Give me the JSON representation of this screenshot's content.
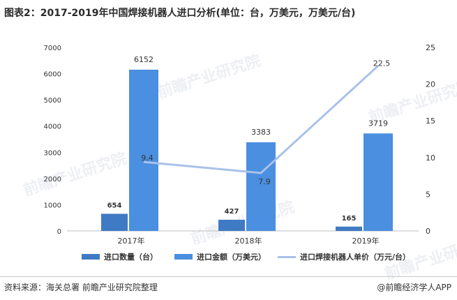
{
  "title": "图表2：2017-2019年中国焊接机器人进口分析(单位：台，万美元，万美元/台)",
  "colors": {
    "qty_bar": "#3f7bc4",
    "amount_bar": "#4a8fe0",
    "price_line": "#a9c1ea",
    "axis_text": "#333333",
    "gridline": "#e2e2e2"
  },
  "chart_data": {
    "type": "bar",
    "categories": [
      "2017年",
      "2018年",
      "2019年"
    ],
    "series": [
      {
        "name": "进口数量（台）",
        "type": "bar",
        "axis": "left",
        "values": [
          654,
          427,
          165
        ]
      },
      {
        "name": "进口金额（万美元）",
        "type": "bar",
        "axis": "left",
        "values": [
          6152,
          3383,
          3719
        ]
      },
      {
        "name": "进口焊接机器人单价（万元/台）",
        "type": "line",
        "axis": "right",
        "values": [
          9.4,
          7.9,
          22.5
        ]
      }
    ],
    "y_left": {
      "min": 0,
      "max": 7000,
      "ticks": [
        "0",
        "1000",
        "2000",
        "3000",
        "4000",
        "5000",
        "6000",
        "7000"
      ]
    },
    "y_right": {
      "min": 0,
      "max": 25,
      "ticks": [
        "0",
        "5",
        "10",
        "15",
        "20",
        "25"
      ]
    },
    "grid": false,
    "legend_position": "bottom"
  },
  "watermark": "前瞻产业研究院",
  "footer": {
    "source": "资料来源：海关总署 前瞻产业研究院整理",
    "brand": "@前瞻经济学人APP"
  }
}
